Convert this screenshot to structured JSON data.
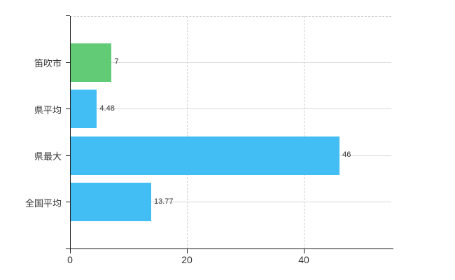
{
  "chart_data": {
    "type": "bar",
    "orientation": "horizontal",
    "title": "",
    "xlabel": "",
    "ylabel": "",
    "categories": [
      "笛吹市",
      "県平均",
      "県最大",
      "全国平均"
    ],
    "values": [
      7,
      4.48,
      46,
      13.77
    ],
    "value_labels": [
      "7",
      "4.48",
      "46",
      "13.77"
    ],
    "series": [
      {
        "name": "",
        "values": [
          7,
          4.48,
          46,
          13.77
        ]
      }
    ],
    "x_ticks": [
      0,
      20,
      40
    ],
    "x_tick_labels": [
      "0",
      "20",
      "40"
    ],
    "xlim": [
      0,
      55
    ],
    "grid": true,
    "legend_position": "none",
    "bar_colors": [
      "#61cb76",
      "#42bef4",
      "#42bef4",
      "#42bef4"
    ]
  },
  "colors": {
    "background": "#ffffff",
    "highlight_bar": "#61cb76",
    "default_bar": "#42bef4",
    "axis_line": "#1a1a1a",
    "grid_solid": "#d9d9d9",
    "grid_dashed": "#cfcfcf",
    "text": "#333333"
  }
}
